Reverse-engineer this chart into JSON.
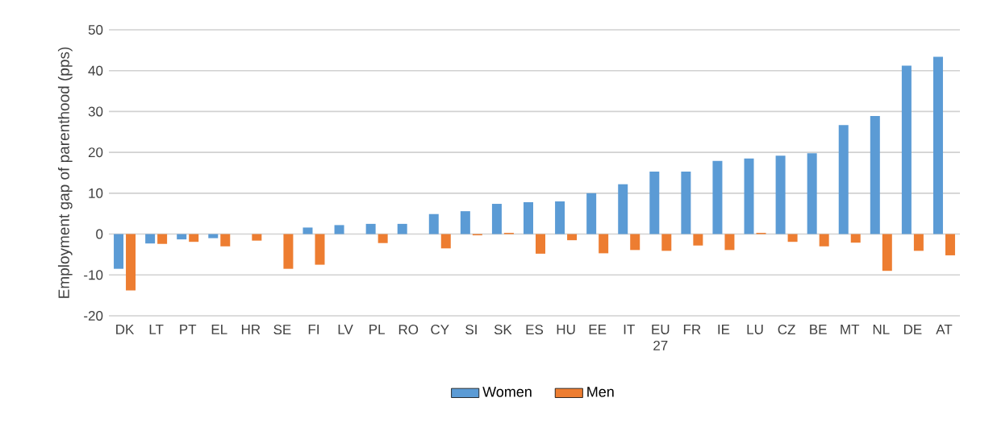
{
  "chart_data": {
    "type": "bar",
    "ylabel": "Employment gap of parenthood (pps)",
    "categories": [
      "DK",
      "LT",
      "PT",
      "EL",
      "HR",
      "SE",
      "FI",
      "LV",
      "PL",
      "RO",
      "CY",
      "SI",
      "SK",
      "ES",
      "HU",
      "EE",
      "IT",
      "EU 27",
      "FR",
      "IE",
      "LU",
      "CZ",
      "BE",
      "MT",
      "NL",
      "DE",
      "AT"
    ],
    "series": [
      {
        "name": "Women",
        "color": "#5b9bd5",
        "values": [
          -8.5,
          -2.3,
          -1.3,
          -1.0,
          0,
          0,
          1.6,
          2.2,
          2.5,
          2.5,
          4.9,
          5.6,
          7.4,
          7.8,
          8.0,
          10.0,
          12.2,
          15.3,
          15.3,
          17.9,
          18.5,
          19.2,
          19.8,
          26.7,
          28.9,
          41.2,
          43.4
        ]
      },
      {
        "name": "Men",
        "color": "#ed7d31",
        "values": [
          -13.8,
          -2.4,
          -1.9,
          -3.0,
          -1.6,
          -8.5,
          -7.5,
          0,
          -2.2,
          0,
          -3.5,
          -0.3,
          0.3,
          -4.8,
          -1.5,
          -4.7,
          -3.9,
          -4.1,
          -2.8,
          -3.9,
          0.3,
          -1.9,
          -3.0,
          -2.1,
          -9.0,
          -4.1,
          -5.2
        ]
      }
    ],
    "ylim": [
      -20,
      50
    ],
    "yticks": [
      -20,
      -10,
      0,
      10,
      20,
      30,
      40,
      50
    ],
    "grid": "y",
    "legend": "bottom"
  }
}
